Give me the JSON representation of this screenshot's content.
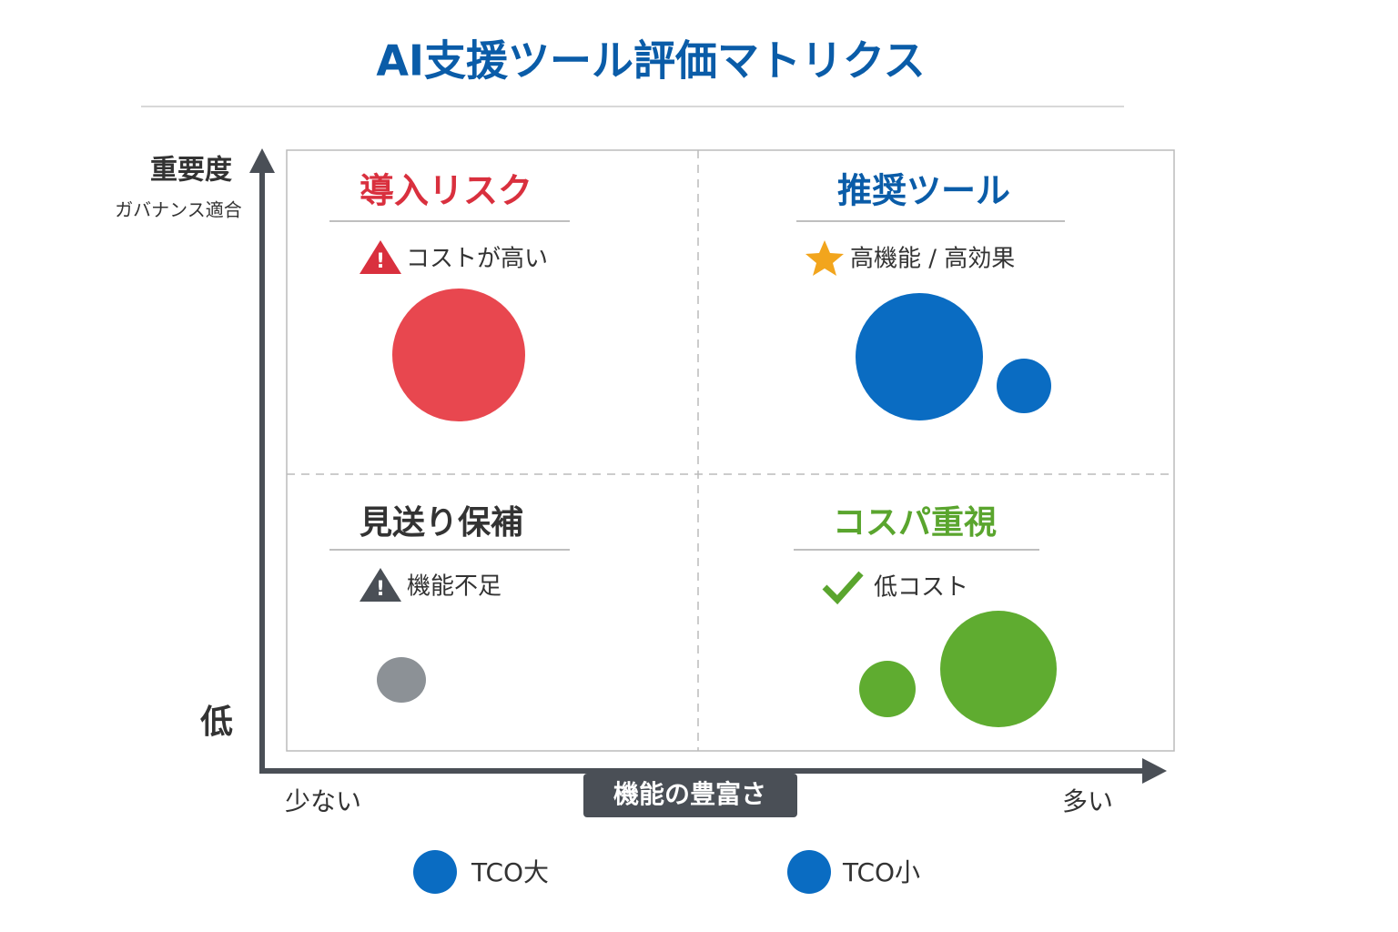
{
  "title": "AI支援ツール評価マトリクス",
  "quadrants": [
    {
      "title": "導入リスク",
      "note": "コストが高い"
    },
    {
      "title": "推奨ツール",
      "note": "高機能 / 高効果"
    },
    {
      "title": "見送り保補",
      "note": "機能不足"
    },
    {
      "title": "コスパ重視",
      "note": "低コスト"
    }
  ],
  "axes": {
    "y_label": "重要度",
    "y_sublabel": "ガバナンス適合",
    "y_low": "低",
    "x_label": "機能の豊富さ",
    "x_low": "少ない",
    "x_high": "多い"
  },
  "legend": [
    "TCO大",
    "TCO小"
  ]
}
